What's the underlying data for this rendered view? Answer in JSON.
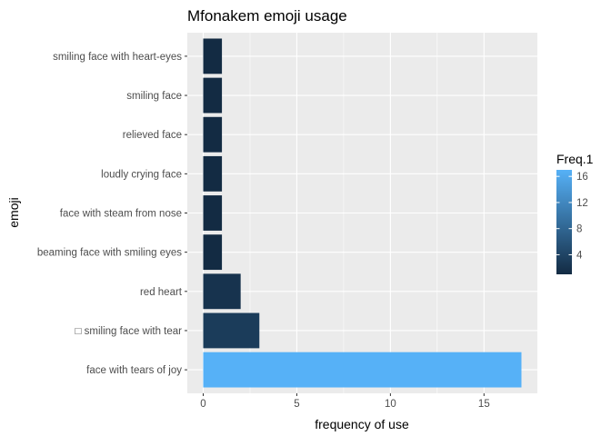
{
  "chart_data": {
    "type": "bar",
    "orientation": "horizontal",
    "title": "Mfonakem emoji usage",
    "xlabel": "frequency of use",
    "ylabel": "emoji",
    "categories": [
      "face with tears of joy",
      "□ smiling face with tear",
      "red heart",
      "beaming face with smiling eyes",
      "face with steam from nose",
      "loudly crying face",
      "relieved face",
      "smiling face",
      "smiling face with heart-eyes"
    ],
    "values": [
      17,
      3,
      2,
      1,
      1,
      1,
      1,
      1,
      1
    ],
    "xlim": [
      -0.85,
      17.85
    ],
    "xticks": [
      0,
      5,
      10,
      15
    ],
    "grid": true,
    "legend": {
      "title": "Freq.1",
      "placement": "right",
      "type": "colorbar",
      "ticks": [
        4,
        8,
        12,
        16
      ],
      "range": [
        1,
        17
      ],
      "color_low": "#132B43",
      "color_high": "#56B1F7"
    },
    "panel_background": "#EBEBEB",
    "grid_color": "#FFFFFF"
  }
}
